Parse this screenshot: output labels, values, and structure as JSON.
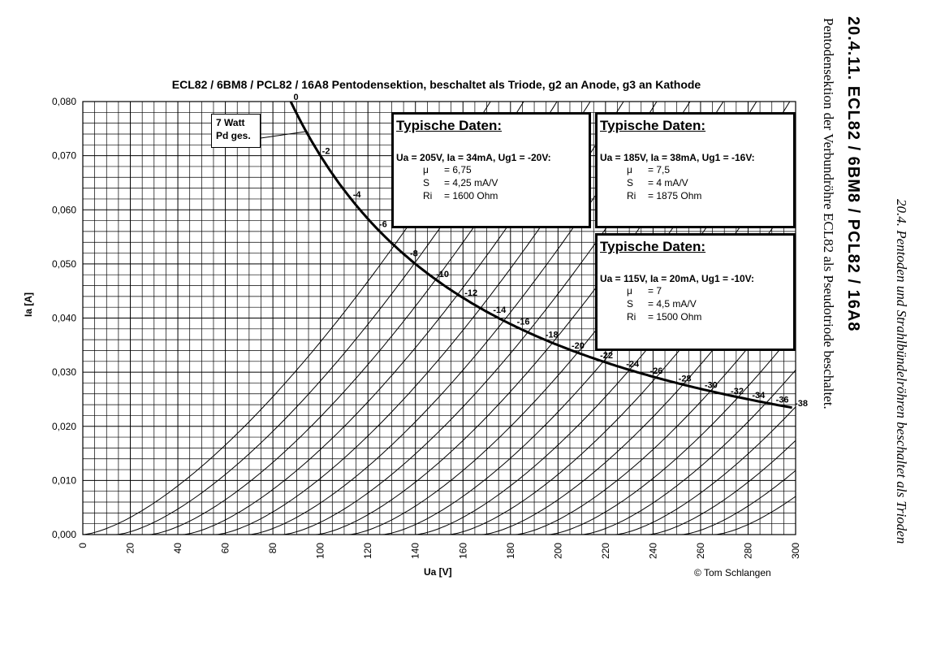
{
  "chart_data": {
    "type": "line",
    "title": "ECL82 / 6BM8 / PCL82 / 16A8 Pentodensektion, beschaltet als Triode, g2 an Anode, g3 an Kathode",
    "xlabel": "Ua [V]",
    "ylabel": "Ia [A]",
    "xlim": [
      0,
      300
    ],
    "ylim": [
      0,
      0.08
    ],
    "x_ticks": [
      "0",
      "20",
      "40",
      "60",
      "80",
      "100",
      "120",
      "140",
      "160",
      "180",
      "200",
      "220",
      "240",
      "260",
      "280",
      "300"
    ],
    "y_ticks": [
      "0,000",
      "0,010",
      "0,020",
      "0,030",
      "0,040",
      "0,050",
      "0,060",
      "0,070",
      "0,080"
    ],
    "grid": true,
    "curve_family": "Ug1 [V]",
    "curve_k": 3.56e-05,
    "curves": [
      {
        "name": "0",
        "ug1": 0,
        "label_at": [
          88,
          0.08
        ]
      },
      {
        "name": "-2",
        "ug1": -2,
        "label_at": [
          100,
          0.07
        ]
      },
      {
        "name": "-4",
        "ug1": -4,
        "label_at": [
          113,
          0.062
        ]
      },
      {
        "name": "-6",
        "ug1": -6,
        "label_at": [
          124,
          0.0565
        ]
      },
      {
        "name": "-8",
        "ug1": -8,
        "label_at": [
          137,
          0.0511
        ]
      },
      {
        "name": "-10",
        "ug1": -10,
        "label_at": [
          148,
          0.0473
        ]
      },
      {
        "name": "-12",
        "ug1": -12,
        "label_at": [
          160,
          0.0438
        ]
      },
      {
        "name": "-14",
        "ug1": -14,
        "label_at": [
          172,
          0.0407
        ]
      },
      {
        "name": "-16",
        "ug1": -16,
        "label_at": [
          182,
          0.0385
        ]
      },
      {
        "name": "-18",
        "ug1": -18,
        "label_at": [
          194,
          0.0361
        ]
      },
      {
        "name": "-20",
        "ug1": -20,
        "label_at": [
          205,
          0.0341
        ]
      },
      {
        "name": "-22",
        "ug1": -22,
        "label_at": [
          217,
          0.0323
        ]
      },
      {
        "name": "-24",
        "ug1": -24,
        "label_at": [
          228,
          0.0307
        ]
      },
      {
        "name": "-26",
        "ug1": -26,
        "label_at": [
          238,
          0.0294
        ]
      },
      {
        "name": "-28",
        "ug1": -28,
        "label_at": [
          250,
          0.028
        ]
      },
      {
        "name": "-30",
        "ug1": -30,
        "label_at": [
          261,
          0.0268
        ]
      },
      {
        "name": "-32",
        "ug1": -32,
        "label_at": [
          272,
          0.0257
        ]
      },
      {
        "name": "-34",
        "ug1": -34,
        "label_at": [
          281,
          0.0249
        ]
      },
      {
        "name": "-36",
        "ug1": -36,
        "label_at": [
          291,
          0.0241
        ]
      },
      {
        "name": "-38",
        "ug1": -38,
        "label_at": [
          299,
          0.0234
        ]
      }
    ],
    "power_limit": {
      "label_line1": "7 Watt",
      "label_line2": "Pd ges.",
      "watts": 7,
      "x_from": 87.5,
      "x_to": 299
    },
    "annotations": [
      {
        "heading": "Typische Daten:",
        "condition": "Ua = 205V, Ia = 34mA, Ug1 = -20V:",
        "rows": [
          [
            "μ",
            "= 6,75"
          ],
          [
            "S",
            "= 4,25 mA/V"
          ],
          [
            "Ri",
            "= 1600 Ohm"
          ]
        ]
      },
      {
        "heading": "Typische Daten:",
        "condition": "Ua = 185V, Ia = 38mA, Ug1 = -16V:",
        "rows": [
          [
            "μ",
            "= 7,5"
          ],
          [
            "S",
            "= 4 mA/V"
          ],
          [
            "Ri",
            "= 1875 Ohm"
          ]
        ]
      },
      {
        "heading": "Typische Daten:",
        "condition": "Ua = 115V, Ia = 20mA, Ug1 = -10V:",
        "rows": [
          [
            "μ",
            "= 7"
          ],
          [
            "S",
            "= 4,5 mA/V"
          ],
          [
            "Ri",
            "= 1500 Ohm"
          ]
        ]
      }
    ],
    "credit": "© Tom Schlangen"
  },
  "page": {
    "page_title": "20.4.11.  ECL82 / 6BM8 / PCL82 / 16A8",
    "caption": "Pentodensektion der Verbundröhre ECL82 als Pseudotriode beschaltet.",
    "running_head": "20.4.  Pentoden und Strahlbündelröhren beschaltet als Trioden"
  }
}
